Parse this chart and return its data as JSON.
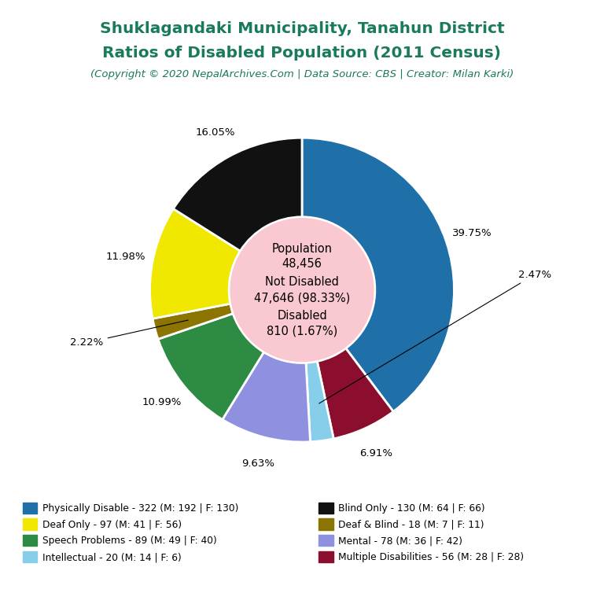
{
  "title_line1": "Shuklagandaki Municipality, Tanahun District",
  "title_line2": "Ratios of Disabled Population (2011 Census)",
  "subtitle": "(Copyright © 2020 NepalArchives.Com | Data Source: CBS | Creator: Milan Karki)",
  "title_color": "#1a7a5e",
  "subtitle_color": "#1a7a5e",
  "center_bg": "#f9c8d0",
  "labels": [
    "Physically Disable - 322 (M: 192 | F: 130)",
    "Blind Only - 130 (M: 64 | F: 66)",
    "Deaf Only - 97 (M: 41 | F: 56)",
    "Deaf & Blind - 18 (M: 7 | F: 11)",
    "Speech Problems - 89 (M: 49 | F: 40)",
    "Mental - 78 (M: 36 | F: 42)",
    "Intellectual - 20 (M: 14 | F: 6)",
    "Multiple Disabilities - 56 (M: 28 | F: 28)"
  ],
  "values": [
    322,
    130,
    97,
    18,
    89,
    78,
    20,
    56
  ],
  "colors": [
    "#1f6fa8",
    "#111111",
    "#f0e800",
    "#8b7500",
    "#2e8b44",
    "#9090e0",
    "#87ceeb",
    "#8b0e2e"
  ],
  "pct_labels": [
    "39.75%",
    "16.05%",
    "11.98%",
    "2.22%",
    "10.99%",
    "9.63%",
    "2.47%",
    "6.91%"
  ],
  "pct_values": [
    39.75,
    16.05,
    11.98,
    2.22,
    10.99,
    9.63,
    2.47,
    6.91
  ],
  "wedge_order": [
    0,
    7,
    6,
    5,
    4,
    3,
    2,
    1
  ],
  "start_angle": 90,
  "donut_inner": 0.47,
  "figsize": [
    7.68,
    7.68
  ],
  "dpi": 100
}
